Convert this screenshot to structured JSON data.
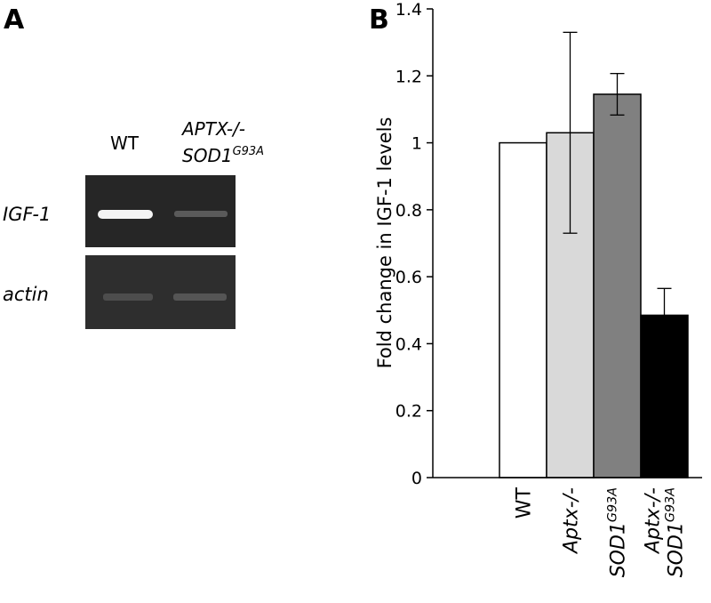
{
  "panel_a": {
    "label": "A",
    "lanes": [
      [
        {
          "text": "WT"
        }
      ],
      [
        {
          "text": "APTX-/-"
        },
        {
          "text": "SOD1",
          "sup": "G93A"
        }
      ]
    ],
    "rows": [
      "IGF-1",
      "actin"
    ]
  },
  "chart_data": {
    "type": "bar",
    "panel_label": "B",
    "y_label": "Fold change in IGF-1 levels",
    "categories": [
      [
        {
          "text": "WT"
        }
      ],
      [
        {
          "text": "Aptx-/-"
        }
      ],
      [
        {
          "text": "SOD1",
          "sup": "G93A"
        }
      ],
      [
        {
          "text": "Aptx-/-"
        },
        {
          "text": "SOD1",
          "sup": "G93A"
        }
      ]
    ],
    "values": [
      1.0,
      1.03,
      1.145,
      0.485
    ],
    "errors": [
      null,
      0.3,
      0.062,
      0.08
    ],
    "colors": [
      "#ffffff",
      "#d9d9d9",
      "#808080",
      "#000000"
    ],
    "ylim": [
      0,
      1.4
    ],
    "yticks": [
      0,
      0.2,
      0.4,
      0.6,
      0.8,
      1,
      1.2,
      1.4
    ]
  }
}
